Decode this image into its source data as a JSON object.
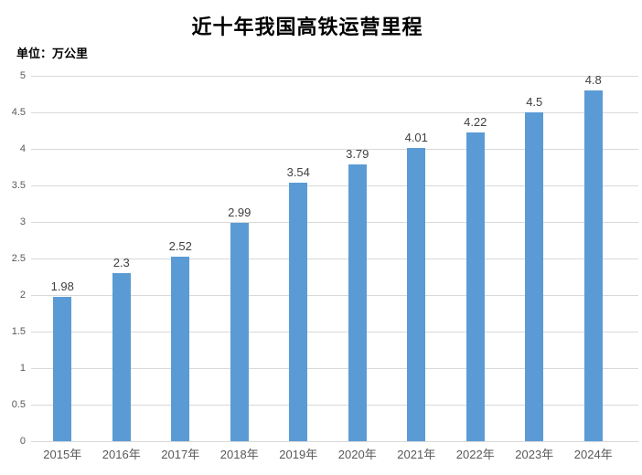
{
  "chart_data": {
    "type": "bar",
    "title": "近十年我国高铁运营里程",
    "unit_label": "单位：万公里",
    "categories": [
      "2015年",
      "2016年",
      "2017年",
      "2018年",
      "2019年",
      "2020年",
      "2021年",
      "2022年",
      "2023年",
      "2024年"
    ],
    "values": [
      1.98,
      2.3,
      2.52,
      2.99,
      3.54,
      3.79,
      4.01,
      4.22,
      4.5,
      4.8
    ],
    "xlabel": "",
    "ylabel": "万公里",
    "ylim": [
      0,
      5
    ],
    "yticks": [
      0,
      0.5,
      1,
      1.5,
      2,
      2.5,
      3,
      3.5,
      4,
      4.5,
      5
    ],
    "grid": true,
    "legend": "none",
    "data_labels": true,
    "colors": {
      "bar": "#5B9BD5",
      "gridline": "#D9D9D9",
      "axis_line": "#D9D9D9",
      "axis_tick_text": "#595959",
      "data_label_text": "#404040",
      "title_text": "#000000"
    }
  }
}
